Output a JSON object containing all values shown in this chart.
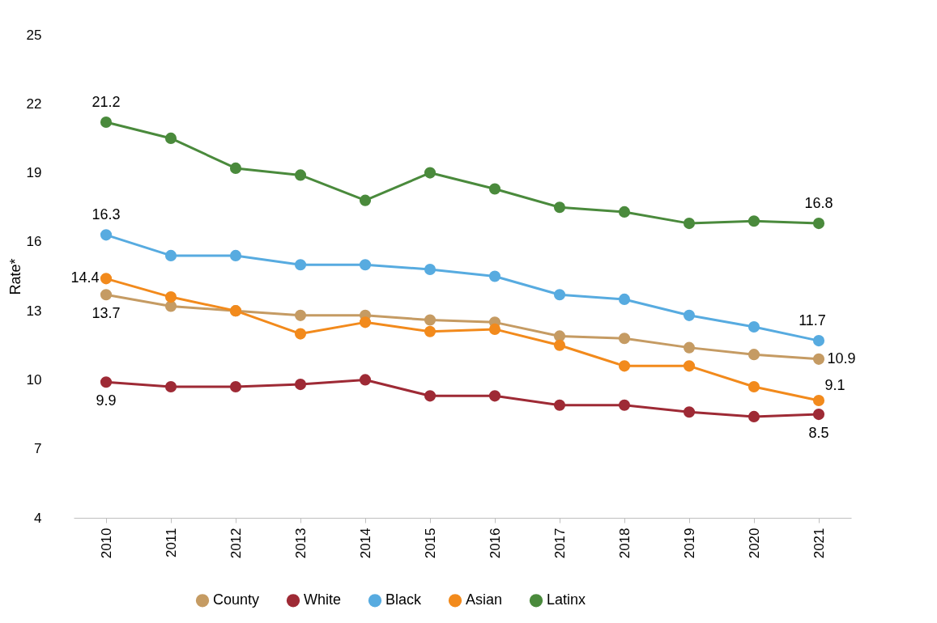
{
  "chart_data": {
    "type": "line",
    "ylabel": "Rate*",
    "categories": [
      "2010",
      "2011",
      "2012",
      "2013",
      "2014",
      "2015",
      "2016",
      "2017",
      "2018",
      "2019",
      "2020",
      "2021"
    ],
    "ylim": [
      4,
      25
    ],
    "yticks": [
      4,
      7,
      10,
      13,
      16,
      19,
      22,
      25
    ],
    "grid": false,
    "legend": "bottom",
    "marker": "circle",
    "line_style": "solid",
    "series": [
      {
        "name": "County",
        "color": "#c59b63",
        "values": [
          13.7,
          13.2,
          13.0,
          12.8,
          12.8,
          12.6,
          12.5,
          11.9,
          11.8,
          11.4,
          11.1,
          10.9
        ],
        "value_labels": [
          "13.7",
          null,
          null,
          null,
          null,
          null,
          null,
          null,
          null,
          null,
          null,
          "10.9"
        ]
      },
      {
        "name": "White",
        "color": "#9e2a35",
        "values": [
          9.9,
          9.7,
          9.7,
          9.8,
          10.0,
          9.3,
          9.3,
          8.9,
          8.9,
          8.6,
          8.4,
          8.5
        ],
        "value_labels": [
          "9.9",
          null,
          null,
          null,
          null,
          null,
          null,
          null,
          null,
          null,
          null,
          "8.5"
        ]
      },
      {
        "name": "Black",
        "color": "#57abe0",
        "values": [
          16.3,
          15.4,
          15.4,
          15.0,
          15.0,
          14.8,
          14.5,
          13.7,
          13.5,
          12.8,
          12.3,
          11.7
        ],
        "value_labels": [
          "16.3",
          null,
          null,
          null,
          null,
          null,
          null,
          null,
          null,
          null,
          null,
          "11.7"
        ]
      },
      {
        "name": "Asian",
        "color": "#f28a1c",
        "values": [
          14.4,
          13.6,
          13.0,
          12.0,
          12.5,
          12.1,
          12.2,
          11.5,
          10.6,
          10.6,
          9.7,
          9.1
        ],
        "value_labels": [
          "14.4",
          null,
          null,
          null,
          null,
          null,
          null,
          null,
          null,
          null,
          null,
          "9.1"
        ]
      },
      {
        "name": "Latinx",
        "color": "#4a8a3c",
        "values": [
          21.2,
          20.5,
          19.2,
          18.9,
          17.8,
          19.0,
          18.3,
          17.5,
          17.3,
          16.8,
          16.9,
          16.8
        ],
        "value_labels": [
          "21.2",
          null,
          null,
          null,
          null,
          null,
          null,
          null,
          null,
          null,
          null,
          "16.8"
        ]
      }
    ]
  }
}
